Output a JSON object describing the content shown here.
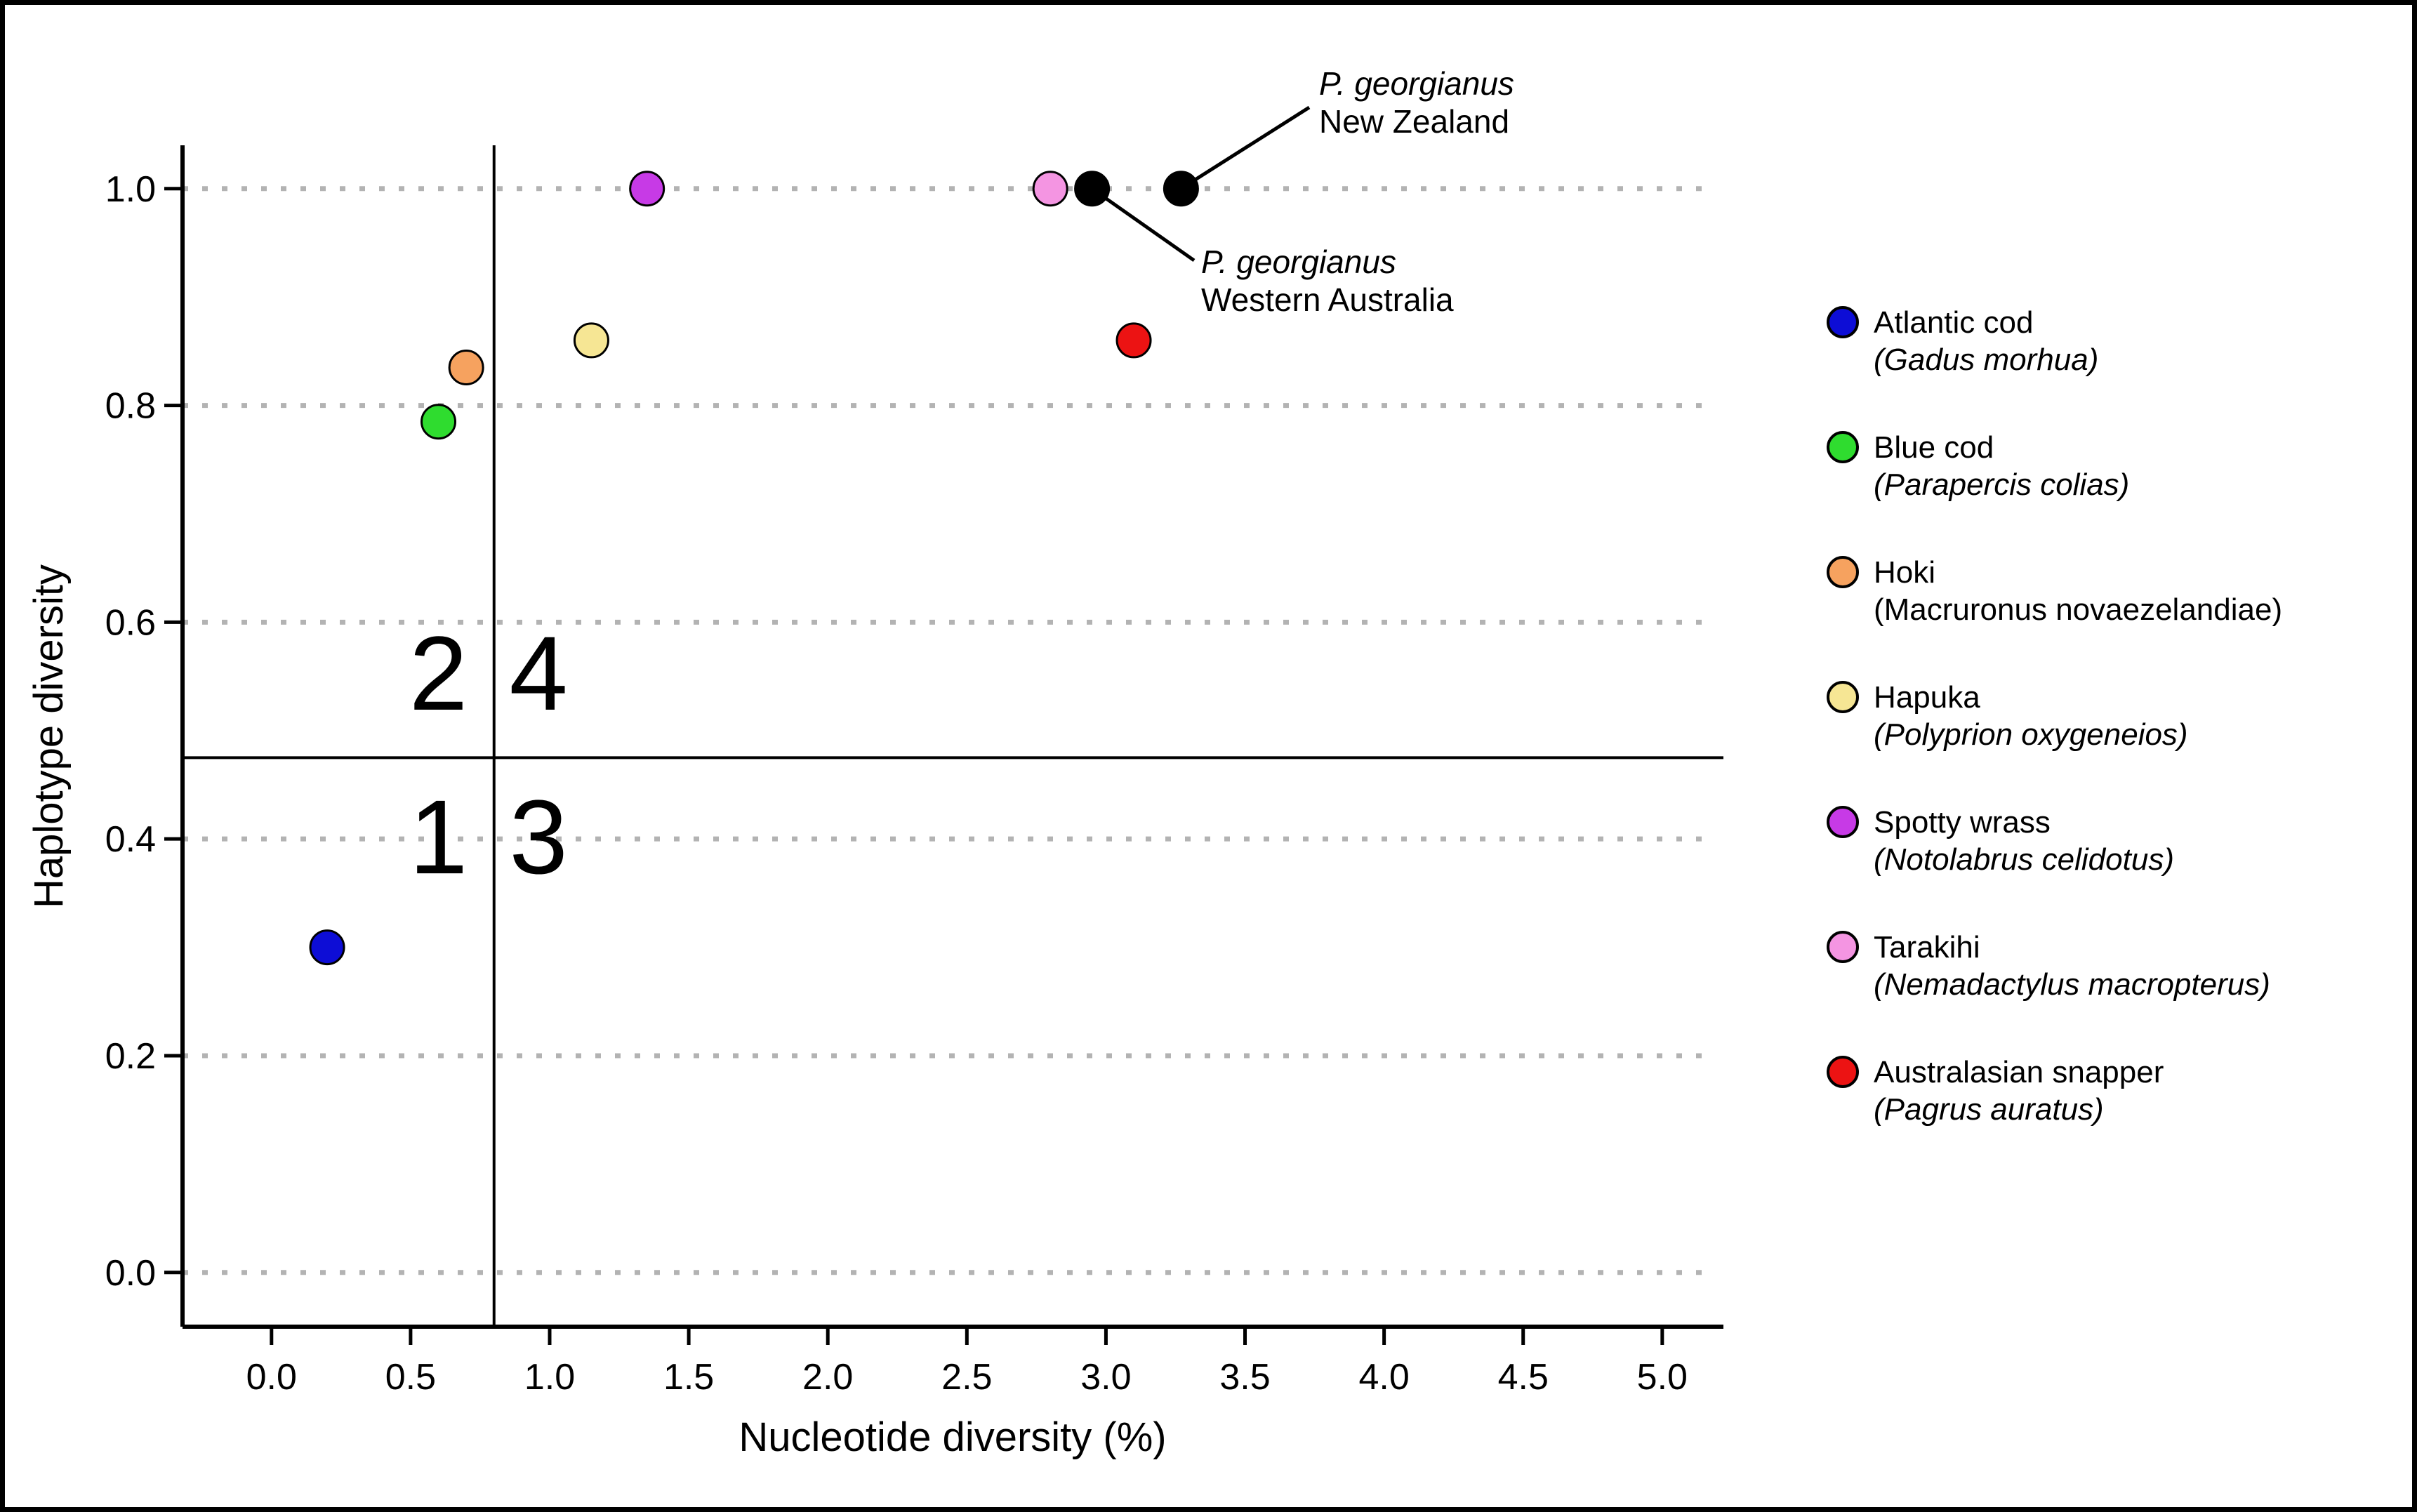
{
  "figure": {
    "background": "#ffffff",
    "border_color": "#000000"
  },
  "chart_data": {
    "type": "scatter",
    "title": "",
    "xlabel": "Nucleotide diversity (%)",
    "ylabel": "Haplotype diversity",
    "xlim": [
      -0.32,
      5.22
    ],
    "ylim": [
      -0.05,
      1.04
    ],
    "x_ticks": [
      "0.0",
      "0.5",
      "1.0",
      "1.5",
      "2.0",
      "2.5",
      "3.0",
      "3.5",
      "4.0",
      "4.5",
      "5.0"
    ],
    "y_ticks": [
      "0.0",
      "0.2",
      "0.4",
      "0.6",
      "0.8",
      "1.0"
    ],
    "grid": {
      "axis": "y",
      "style": "dotted",
      "color": "#b3b3b3"
    },
    "quadrant_dividers": {
      "x": 0.8,
      "y": 0.475,
      "color": "#000000"
    },
    "quadrant_labels": [
      {
        "text": "2",
        "x": 0.6,
        "y": 0.553
      },
      {
        "text": "4",
        "x": 0.96,
        "y": 0.553
      },
      {
        "text": "1",
        "x": 0.6,
        "y": 0.402
      },
      {
        "text": "3",
        "x": 0.96,
        "y": 0.402
      }
    ],
    "points": [
      {
        "id": "atlantic-cod",
        "label": "Atlantic cod",
        "x": 0.2,
        "y": 0.3,
        "color": "#0d0dd6"
      },
      {
        "id": "blue-cod",
        "label": "Blue cod",
        "x": 0.6,
        "y": 0.785,
        "color": "#2fdc2f"
      },
      {
        "id": "hoki",
        "label": "Hoki",
        "x": 0.7,
        "y": 0.835,
        "color": "#f6a25f"
      },
      {
        "id": "hapuka",
        "label": "Hapuka",
        "x": 1.15,
        "y": 0.86,
        "color": "#f6e694"
      },
      {
        "id": "spotty-wrass",
        "label": "Spotty wrass",
        "x": 1.35,
        "y": 1.0,
        "color": "#c73ae6"
      },
      {
        "id": "tarakihi",
        "label": "Tarakihi",
        "x": 2.8,
        "y": 1.0,
        "color": "#f495e2"
      },
      {
        "id": "p-georgianus-wa",
        "label": "P. georgianus Western Australia",
        "x": 2.95,
        "y": 1.0,
        "color": "#000000"
      },
      {
        "id": "p-georgianus-nz",
        "label": "P. georgianus New Zealand",
        "x": 3.27,
        "y": 1.0,
        "color": "#000000"
      },
      {
        "id": "australasian-snapper",
        "label": "Australasian snapper",
        "x": 3.1,
        "y": 0.86,
        "color": "#ec1313"
      }
    ],
    "annotations": [
      {
        "id": "nz",
        "target": "p-georgianus-nz",
        "line1": "P. georgianus",
        "line2": "New Zealand"
      },
      {
        "id": "wa",
        "target": "p-georgianus-wa",
        "line1": "P. georgianus",
        "line2": "Western Australia"
      }
    ]
  },
  "legend": {
    "items": [
      {
        "id": "atlantic-cod",
        "common": "Atlantic cod",
        "scientific": "Gadus morhua",
        "color": "#0d0dd6",
        "italic": true
      },
      {
        "id": "blue-cod",
        "common": "Blue cod",
        "scientific": "Parapercis colias",
        "color": "#2fdc2f",
        "italic": true
      },
      {
        "id": "hoki",
        "common": "Hoki",
        "scientific": "Macruronus novaezelandiae",
        "color": "#f6a25f",
        "italic": false
      },
      {
        "id": "hapuka",
        "common": "Hapuka",
        "scientific": "Polyprion oxygeneios",
        "color": "#f6e694",
        "italic": true
      },
      {
        "id": "spotty-wrass",
        "common": "Spotty wrass",
        "scientific": "Notolabrus celidotus",
        "color": "#c73ae6",
        "italic": true
      },
      {
        "id": "tarakihi",
        "common": "Tarakihi",
        "scientific": "Nemadactylus macropterus",
        "color": "#f495e2",
        "italic": true
      },
      {
        "id": "australasian-snapper",
        "common": "Australasian snapper",
        "scientific": "Pagrus auratus",
        "color": "#ec1313",
        "italic": true
      }
    ]
  }
}
